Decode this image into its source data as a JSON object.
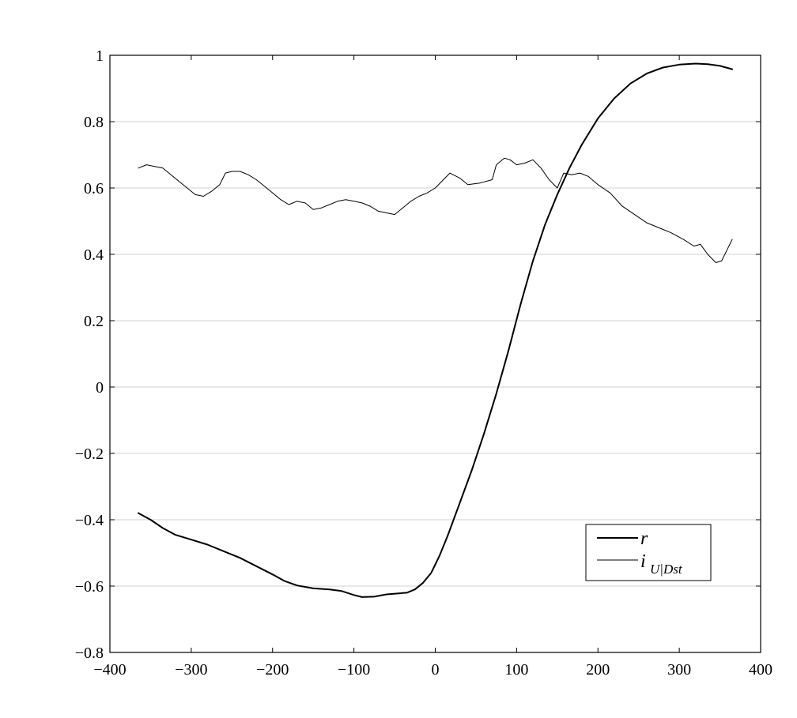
{
  "chart_data": {
    "type": "line",
    "title": "",
    "xlabel": "",
    "ylabel": "",
    "xlim": [
      -400,
      400
    ],
    "ylim": [
      -0.8,
      1
    ],
    "grid": "horizontal",
    "legend_position": "bottom-right",
    "x_ticks": [
      -400,
      -300,
      -200,
      -100,
      0,
      100,
      200,
      300,
      400
    ],
    "x_tick_labels": [
      "−400",
      "−300",
      "−200",
      "−100",
      "0",
      "100",
      "200",
      "300",
      "400"
    ],
    "y_ticks": [
      -0.8,
      -0.6,
      -0.4,
      -0.2,
      0,
      0.2,
      0.4,
      0.6,
      0.8,
      1
    ],
    "y_tick_labels": [
      "−0.8",
      "−0.6",
      "−0.4",
      "−0.2",
      "0",
      "0.2",
      "0.4",
      "0.6",
      "0.8",
      "1"
    ],
    "series": [
      {
        "name": "r",
        "legend_base": "i",
        "color": "#000000",
        "points": [
          [
            -365,
            -0.38
          ],
          [
            -350,
            -0.4
          ],
          [
            -335,
            -0.425
          ],
          [
            -320,
            -0.445
          ],
          [
            -300,
            -0.46
          ],
          [
            -280,
            -0.475
          ],
          [
            -260,
            -0.495
          ],
          [
            -240,
            -0.515
          ],
          [
            -220,
            -0.54
          ],
          [
            -200,
            -0.565
          ],
          [
            -185,
            -0.585
          ],
          [
            -170,
            -0.598
          ],
          [
            -150,
            -0.607
          ],
          [
            -130,
            -0.61
          ],
          [
            -115,
            -0.615
          ],
          [
            -100,
            -0.627
          ],
          [
            -90,
            -0.633
          ],
          [
            -75,
            -0.632
          ],
          [
            -60,
            -0.625
          ],
          [
            -45,
            -0.622
          ],
          [
            -35,
            -0.62
          ],
          [
            -25,
            -0.61
          ],
          [
            -15,
            -0.59
          ],
          [
            -5,
            -0.56
          ],
          [
            5,
            -0.51
          ],
          [
            15,
            -0.45
          ],
          [
            30,
            -0.35
          ],
          [
            45,
            -0.25
          ],
          [
            60,
            -0.14
          ],
          [
            75,
            -0.02
          ],
          [
            90,
            0.11
          ],
          [
            105,
            0.25
          ],
          [
            120,
            0.38
          ],
          [
            135,
            0.49
          ],
          [
            150,
            0.58
          ],
          [
            165,
            0.66
          ],
          [
            180,
            0.73
          ],
          [
            200,
            0.81
          ],
          [
            220,
            0.87
          ],
          [
            240,
            0.915
          ],
          [
            260,
            0.945
          ],
          [
            280,
            0.963
          ],
          [
            300,
            0.972
          ],
          [
            320,
            0.975
          ],
          [
            335,
            0.973
          ],
          [
            350,
            0.968
          ],
          [
            365,
            0.958
          ]
        ]
      },
      {
        "name": "U|Dst",
        "legend_base": "i",
        "color": "#000000",
        "points": [
          [
            -365,
            0.66
          ],
          [
            -355,
            0.67
          ],
          [
            -345,
            0.665
          ],
          [
            -335,
            0.66
          ],
          [
            -325,
            0.64
          ],
          [
            -315,
            0.62
          ],
          [
            -305,
            0.6
          ],
          [
            -295,
            0.58
          ],
          [
            -285,
            0.575
          ],
          [
            -275,
            0.59
          ],
          [
            -265,
            0.61
          ],
          [
            -258,
            0.645
          ],
          [
            -250,
            0.65
          ],
          [
            -240,
            0.65
          ],
          [
            -230,
            0.64
          ],
          [
            -220,
            0.625
          ],
          [
            -210,
            0.605
          ],
          [
            -200,
            0.585
          ],
          [
            -190,
            0.565
          ],
          [
            -180,
            0.55
          ],
          [
            -170,
            0.56
          ],
          [
            -160,
            0.555
          ],
          [
            -150,
            0.535
          ],
          [
            -140,
            0.54
          ],
          [
            -130,
            0.55
          ],
          [
            -120,
            0.56
          ],
          [
            -110,
            0.565
          ],
          [
            -100,
            0.56
          ],
          [
            -90,
            0.555
          ],
          [
            -80,
            0.545
          ],
          [
            -70,
            0.53
          ],
          [
            -60,
            0.525
          ],
          [
            -50,
            0.52
          ],
          [
            -40,
            0.54
          ],
          [
            -30,
            0.56
          ],
          [
            -20,
            0.575
          ],
          [
            -10,
            0.585
          ],
          [
            0,
            0.6
          ],
          [
            10,
            0.625
          ],
          [
            18,
            0.645
          ],
          [
            30,
            0.63
          ],
          [
            40,
            0.61
          ],
          [
            55,
            0.615
          ],
          [
            70,
            0.625
          ],
          [
            75,
            0.67
          ],
          [
            85,
            0.69
          ],
          [
            92,
            0.685
          ],
          [
            100,
            0.67
          ],
          [
            110,
            0.675
          ],
          [
            120,
            0.685
          ],
          [
            130,
            0.66
          ],
          [
            140,
            0.625
          ],
          [
            150,
            0.6
          ],
          [
            158,
            0.645
          ],
          [
            168,
            0.64
          ],
          [
            178,
            0.645
          ],
          [
            188,
            0.635
          ],
          [
            200,
            0.61
          ],
          [
            215,
            0.585
          ],
          [
            230,
            0.545
          ],
          [
            245,
            0.52
          ],
          [
            260,
            0.495
          ],
          [
            275,
            0.48
          ],
          [
            290,
            0.465
          ],
          [
            305,
            0.445
          ],
          [
            318,
            0.425
          ],
          [
            326,
            0.43
          ],
          [
            335,
            0.4
          ],
          [
            345,
            0.375
          ],
          [
            352,
            0.38
          ],
          [
            358,
            0.41
          ],
          [
            365,
            0.445
          ]
        ]
      }
    ]
  }
}
